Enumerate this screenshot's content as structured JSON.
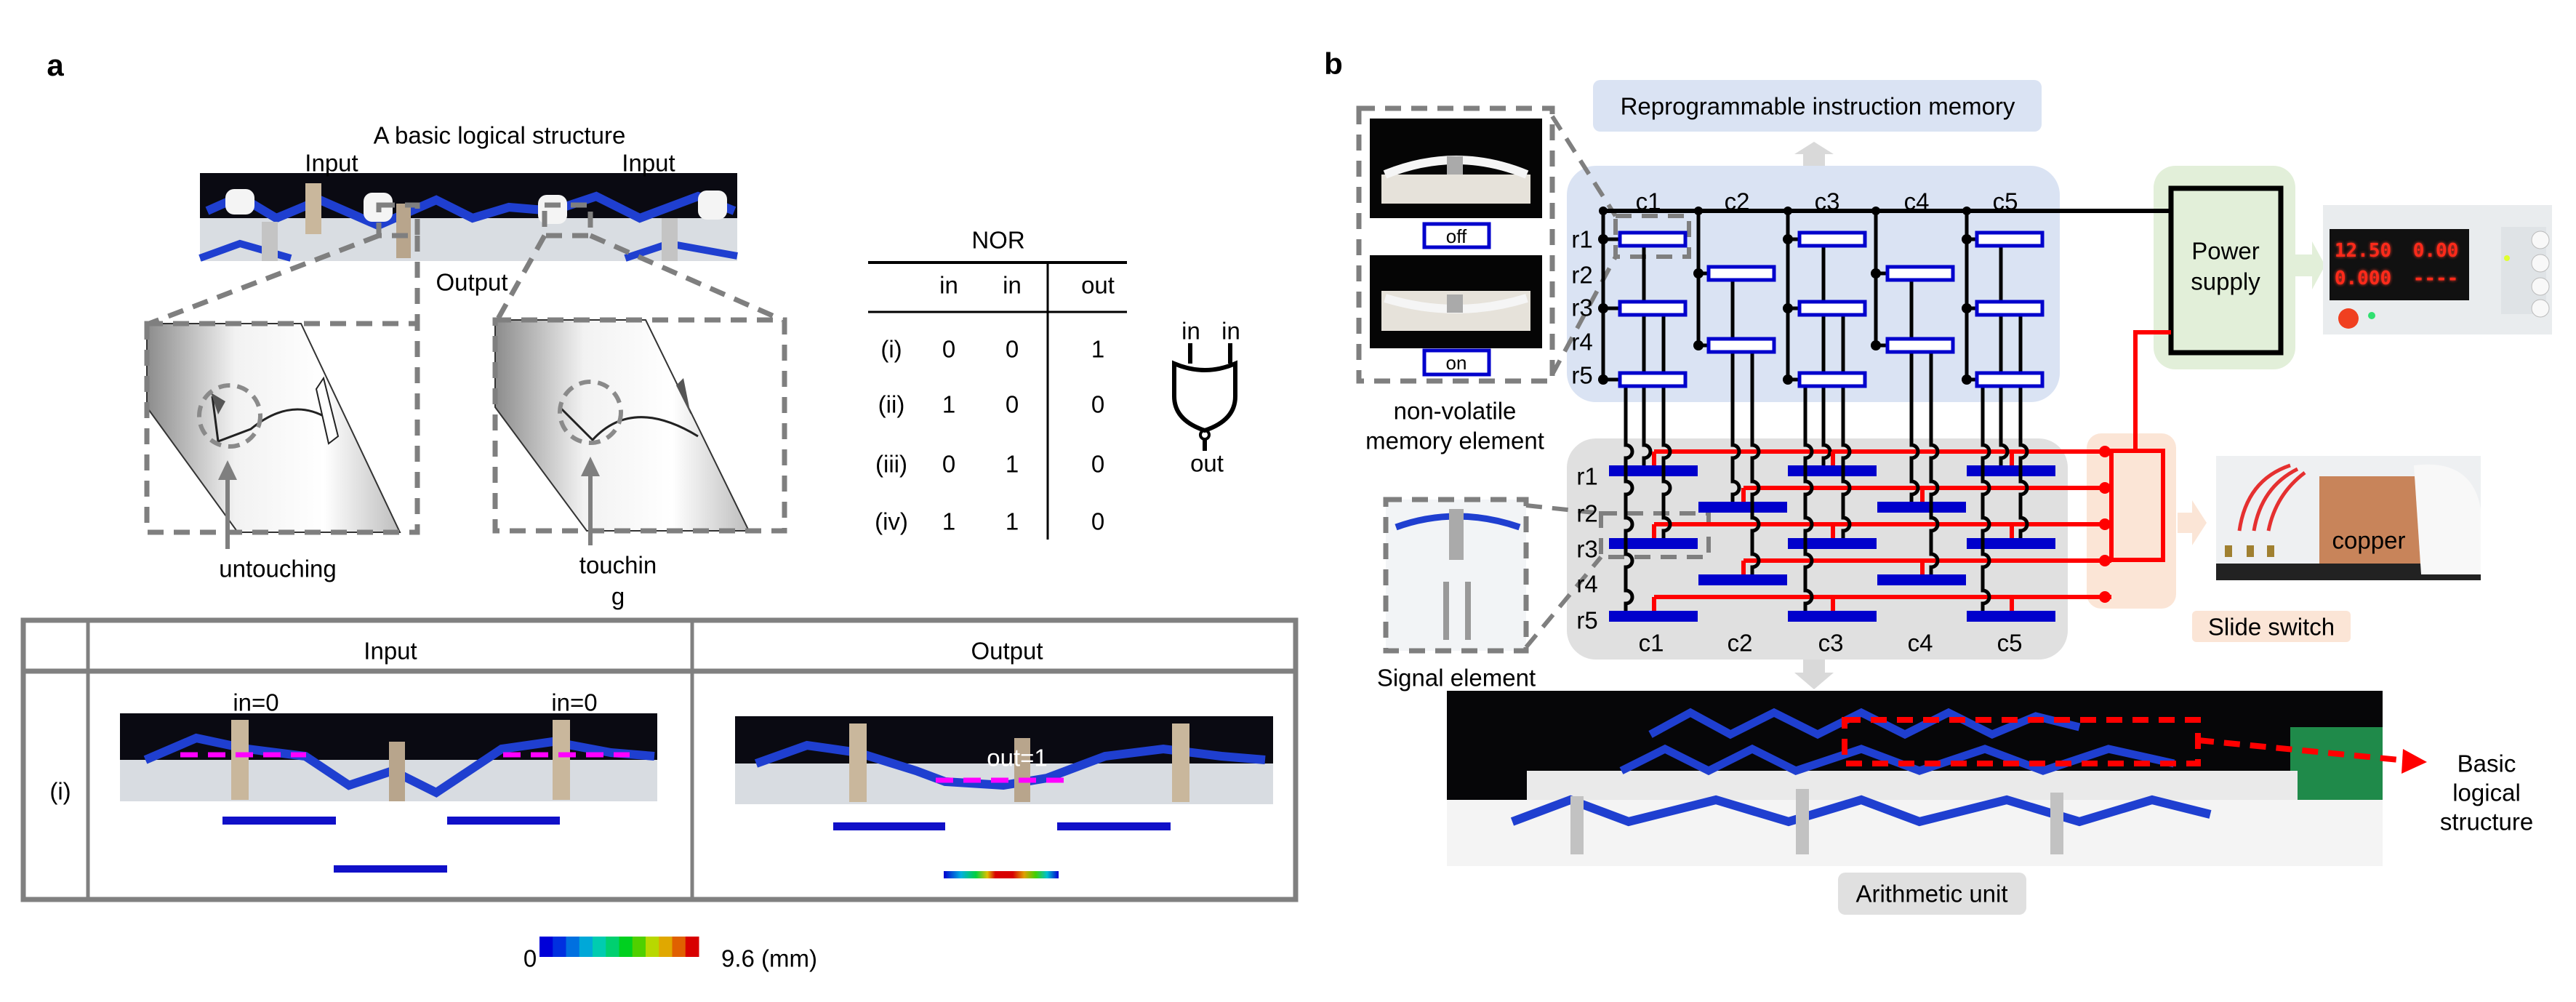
{
  "panel_a": {
    "label": "a",
    "title": "A basic logical structure",
    "input_left": "Input",
    "input_right": "Input",
    "output": "Output",
    "untouching": "untouching",
    "touching_line1": "touchin",
    "touching_line2": "g",
    "nor_table": {
      "title": "NOR",
      "headers": [
        "",
        "in",
        "in",
        "out"
      ],
      "rows": [
        [
          "(i)",
          "0",
          "0",
          "1"
        ],
        [
          "(ii)",
          "1",
          "0",
          "0"
        ],
        [
          "(iii)",
          "0",
          "1",
          "0"
        ],
        [
          "(iv)",
          "1",
          "1",
          "0"
        ]
      ]
    },
    "gate": {
      "in1": "in",
      "in2": "in",
      "out": "out"
    },
    "sim_table": {
      "headers": [
        "Input",
        "Output"
      ],
      "row_label": "(i)",
      "in_left": "in=0",
      "in_right": "in=0",
      "out_label": "out=1"
    },
    "colorbar": {
      "min": "0",
      "max": "9.6 (mm)",
      "colors": [
        "#0000d8",
        "#0030e0",
        "#0070e0",
        "#00a8d8",
        "#00ccb0",
        "#00d070",
        "#00d020",
        "#50d000",
        "#b8d800",
        "#e0a800",
        "#e06000",
        "#d80000"
      ]
    }
  },
  "panel_b": {
    "label": "b",
    "instruction_memory": "Reprogrammable instruction memory",
    "memory_element_caption": [
      "non-volatile",
      "memory element"
    ],
    "off_label": "off",
    "on_label": "on",
    "signal_element_caption": "Signal element",
    "power_supply": [
      "Power",
      "supply"
    ],
    "power_supply_readouts": [
      "12.50",
      "0.00",
      "0.000",
      "----"
    ],
    "slide_switch": "Slide switch",
    "copper": "copper",
    "arithmetic_unit": "Arithmetic unit",
    "basic_structure": [
      "Basic",
      "logical",
      "structure"
    ],
    "columns": [
      "c1",
      "c2",
      "c3",
      "c4",
      "c5"
    ],
    "rows": [
      "r1",
      "r2",
      "r3",
      "r4",
      "r5"
    ],
    "element_rows_per_column": [
      [
        1,
        3,
        5
      ],
      [
        2,
        4
      ],
      [
        1,
        3,
        5
      ],
      [
        2,
        4
      ],
      [
        1,
        3,
        5
      ]
    ],
    "colors": {
      "memory_region": "#dae3f3",
      "arithmetic_region": "#e0e0e0",
      "power_region": "#e2efd9",
      "switch_region": "#fbe5d6",
      "element_blue": "#0000cc",
      "signal_red": "#ff0000"
    }
  }
}
